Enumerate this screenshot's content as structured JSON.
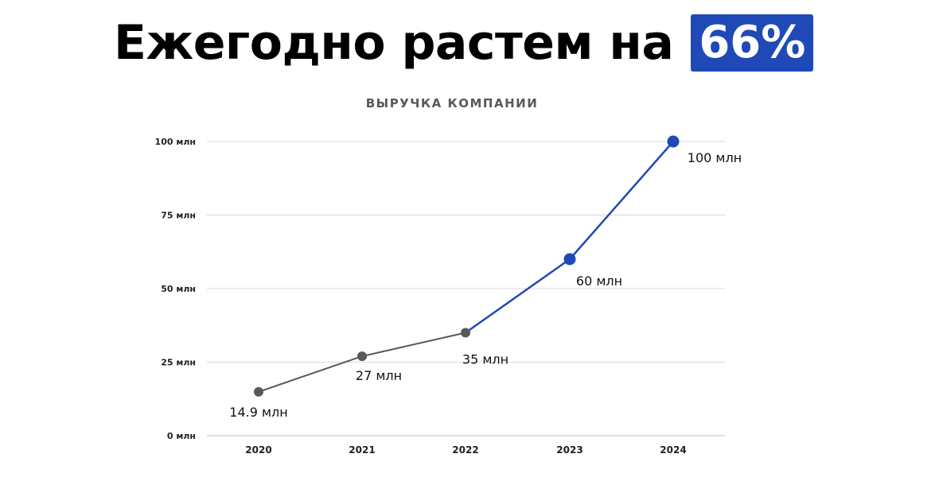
{
  "headline": {
    "text": "Ежегодно растем на",
    "badge": "66%"
  },
  "chart_data": {
    "type": "line",
    "title": "ВЫРУЧКА КОМПАНИИ",
    "categories": [
      "2020",
      "2021",
      "2022",
      "2023",
      "2024"
    ],
    "values": [
      14.9,
      27,
      35,
      60,
      100
    ],
    "data_labels": [
      "14.9 млн",
      "27 млн",
      "35 млн",
      "60 млн",
      "100 млн"
    ],
    "ylim": [
      0,
      100
    ],
    "yticks": [
      0,
      25,
      50,
      75,
      100
    ],
    "ytick_labels": [
      "0 млн",
      "25 млн",
      "50 млн",
      "75 млн",
      "100 млн"
    ],
    "grid": true,
    "highlight_from": "2022",
    "colors": {
      "base": "#595959",
      "highlight": "#1f49b6",
      "grid": "#d9d9d9",
      "axis": "#bfbfbf"
    }
  }
}
